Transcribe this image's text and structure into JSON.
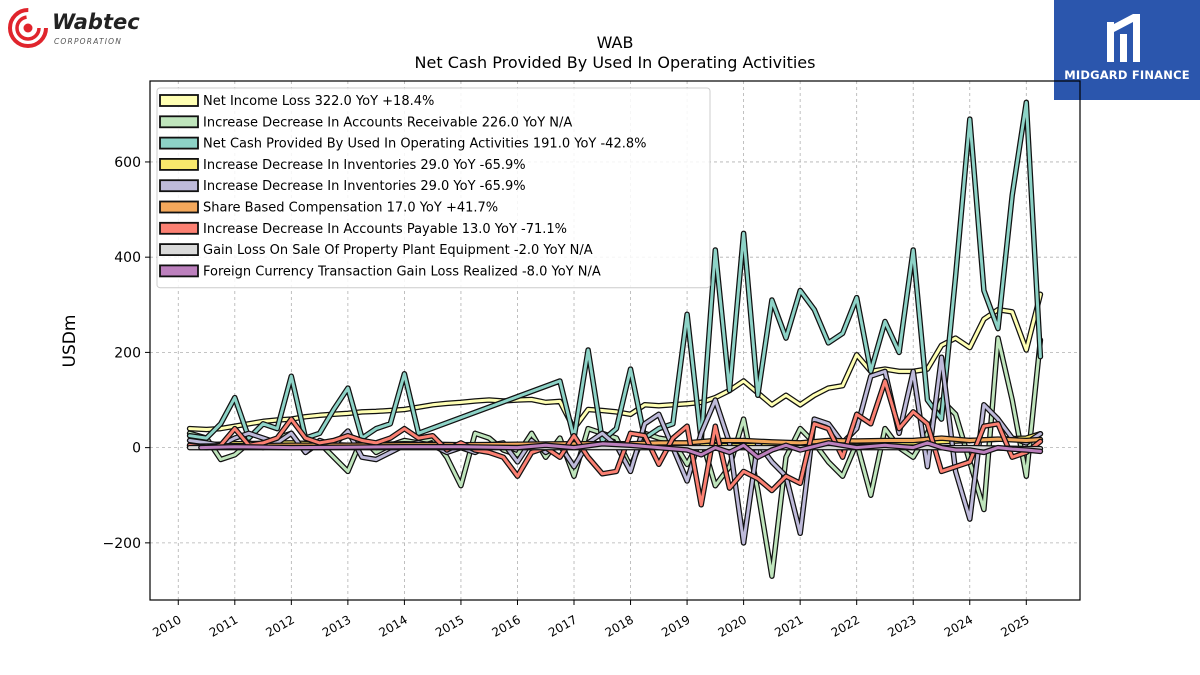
{
  "branding": {
    "company_logo_text": "Wabtec",
    "company_logo_subtext": "CORPORATION",
    "badge_text": "MIDGARD FINANCE"
  },
  "chart_data": {
    "type": "line",
    "title": "WAB",
    "subtitle": "Net Cash Provided By Used In Operating Activities",
    "xlabel": "",
    "ylabel": "USDm",
    "xlim": [
      2009.5,
      2025.95
    ],
    "ylim": [
      -320,
      770
    ],
    "xticks": [
      "2010",
      "2011",
      "2012",
      "2013",
      "2014",
      "2015",
      "2016",
      "2017",
      "2018",
      "2019",
      "2020",
      "2021",
      "2022",
      "2023",
      "2024",
      "2025"
    ],
    "yticks": [
      -200,
      0,
      200,
      400,
      600
    ],
    "ytick_labels": [
      "−200",
      "0",
      "200",
      "400",
      "600"
    ],
    "grid": true,
    "legend_position": "top-left",
    "series": [
      {
        "name": "Net Income Loss",
        "legend": "Net Income Loss  322.0 YoY +18.4%",
        "color": "#ffffb3",
        "x": [
          2010.2,
          2010.5,
          2010.75,
          2011.0,
          2011.25,
          2011.5,
          2011.75,
          2012.0,
          2012.25,
          2012.5,
          2012.75,
          2013.0,
          2013.25,
          2013.5,
          2013.75,
          2014.0,
          2014.25,
          2014.5,
          2014.75,
          2015.0,
          2015.25,
          2015.5,
          2015.75,
          2016.0,
          2016.25,
          2016.5,
          2016.75,
          2017.0,
          2017.25,
          2017.5,
          2017.75,
          2018.0,
          2018.25,
          2018.5,
          2018.75,
          2019.0,
          2019.25,
          2019.5,
          2019.75,
          2020.0,
          2020.25,
          2020.5,
          2020.75,
          2021.0,
          2021.25,
          2021.5,
          2021.75,
          2022.0,
          2022.25,
          2022.5,
          2022.75,
          2023.0,
          2023.25,
          2023.5,
          2023.75,
          2024.0,
          2024.25,
          2024.5,
          2024.75,
          2025.0,
          2025.25
        ],
        "values": [
          40,
          38,
          40,
          45,
          50,
          55,
          58,
          60,
          65,
          68,
          70,
          72,
          75,
          76,
          78,
          80,
          85,
          90,
          93,
          95,
          98,
          100,
          98,
          100,
          101,
          95,
          97,
          40,
          80,
          78,
          75,
          70,
          90,
          88,
          90,
          92,
          95,
          105,
          120,
          140,
          115,
          90,
          110,
          90,
          110,
          125,
          130,
          195,
          160,
          165,
          160,
          160,
          165,
          215,
          230,
          210,
          270,
          290,
          285,
          205,
          322
        ]
      },
      {
        "name": "Increase Decrease In Accounts Receivable",
        "legend": "Increase Decrease In Accounts Receivable  226.0 YoY N/A",
        "color": "#bfe5bc",
        "x": [
          2010.2,
          2010.5,
          2010.75,
          2011.0,
          2011.25,
          2011.5,
          2011.75,
          2012.0,
          2012.25,
          2012.5,
          2012.75,
          2013.0,
          2013.25,
          2013.5,
          2013.75,
          2014.0,
          2014.25,
          2014.5,
          2014.75,
          2015.0,
          2015.25,
          2015.5,
          2015.75,
          2016.0,
          2016.25,
          2016.5,
          2016.75,
          2017.0,
          2017.25,
          2017.5,
          2017.75,
          2018.0,
          2018.25,
          2018.5,
          2018.75,
          2019.0,
          2019.25,
          2019.5,
          2019.75,
          2020.0,
          2020.25,
          2020.5,
          2020.75,
          2021.0,
          2021.25,
          2021.5,
          2021.75,
          2022.0,
          2022.25,
          2022.5,
          2022.75,
          2023.0,
          2023.25,
          2023.5,
          2023.75,
          2024.0,
          2024.25,
          2024.5,
          2024.75,
          2025.0,
          2025.25
        ],
        "values": [
          30,
          20,
          -25,
          -15,
          10,
          0,
          20,
          30,
          -10,
          10,
          -20,
          -50,
          20,
          -10,
          5,
          15,
          10,
          20,
          -20,
          -80,
          30,
          20,
          -5,
          -15,
          30,
          -20,
          20,
          -60,
          40,
          30,
          20,
          -40,
          30,
          20,
          15,
          -35,
          20,
          -80,
          -40,
          60,
          -90,
          -270,
          -20,
          40,
          10,
          -30,
          -60,
          10,
          -100,
          40,
          0,
          -20,
          30,
          100,
          70,
          -30,
          -130,
          230,
          100,
          -60,
          226
        ]
      },
      {
        "name": "Net Cash Provided By Used In Operating Activities",
        "legend": "Net Cash Provided By Used In Operating Activities  191.0 YoY -42.8%",
        "color": "#8dd3c7",
        "x": [
          2010.2,
          2010.5,
          2010.75,
          2011.0,
          2011.25,
          2011.5,
          2011.75,
          2012.0,
          2012.25,
          2012.5,
          2012.75,
          2013.0,
          2013.25,
          2013.5,
          2013.75,
          2014.0,
          2014.25,
          2016.75,
          2017.0,
          2017.25,
          2017.5,
          2017.75,
          2018.0,
          2018.25,
          2018.5,
          2018.75,
          2019.0,
          2019.25,
          2019.5,
          2019.75,
          2020.0,
          2020.25,
          2020.5,
          2020.75,
          2021.0,
          2021.25,
          2021.5,
          2021.75,
          2022.0,
          2022.25,
          2022.5,
          2022.75,
          2023.0,
          2023.25,
          2023.5,
          2023.75,
          2024.0,
          2024.25,
          2024.5,
          2024.75,
          2025.0,
          2025.25
        ],
        "values": [
          25,
          20,
          50,
          105,
          20,
          50,
          40,
          150,
          20,
          30,
          80,
          125,
          20,
          40,
          50,
          155,
          30,
          140,
          20,
          205,
          15,
          40,
          165,
          20,
          40,
          50,
          280,
          15,
          415,
          120,
          450,
          110,
          310,
          230,
          330,
          290,
          220,
          240,
          315,
          160,
          265,
          200,
          415,
          100,
          60,
          360,
          690,
          330,
          250,
          530,
          725,
          191
        ]
      },
      {
        "name": "Increase Decrease In Inventories",
        "legend": "Increase Decrease In Inventories  29.0 YoY -65.9%",
        "color": "#f8e86c",
        "x": [
          2010.2,
          2011.0,
          2012.0,
          2013.0,
          2014.0,
          2015.0,
          2016.0,
          2017.0,
          2018.0,
          2019.0,
          2020.0,
          2021.0,
          2022.0,
          2023.0,
          2024.0,
          2025.0,
          2025.25
        ],
        "values": [
          5,
          8,
          10,
          5,
          8,
          6,
          5,
          4,
          6,
          5,
          4,
          8,
          12,
          10,
          15,
          20,
          29
        ]
      },
      {
        "name": "Increase Decrease In Inventories",
        "legend": "Increase Decrease In Inventories  29.0 YoY -65.9%",
        "color": "#bebada",
        "x": [
          2010.2,
          2010.5,
          2010.75,
          2011.0,
          2011.25,
          2011.5,
          2011.75,
          2012.0,
          2012.25,
          2012.5,
          2012.75,
          2013.0,
          2013.25,
          2013.5,
          2013.75,
          2014.0,
          2014.25,
          2014.5,
          2014.75,
          2015.0,
          2015.25,
          2015.5,
          2015.75,
          2016.0,
          2016.25,
          2016.5,
          2016.75,
          2017.0,
          2017.25,
          2017.5,
          2017.75,
          2018.0,
          2018.25,
          2018.5,
          2018.75,
          2019.0,
          2019.25,
          2019.5,
          2019.75,
          2020.0,
          2020.25,
          2020.5,
          2020.75,
          2021.0,
          2021.25,
          2021.5,
          2021.75,
          2022.0,
          2022.25,
          2022.5,
          2022.75,
          2023.0,
          2023.25,
          2023.5,
          2023.75,
          2024.0,
          2024.25,
          2024.5,
          2024.75,
          2025.0,
          2025.25
        ],
        "values": [
          15,
          10,
          5,
          20,
          30,
          20,
          10,
          30,
          -10,
          15,
          5,
          35,
          -20,
          -25,
          -10,
          5,
          10,
          5,
          -10,
          0,
          -10,
          5,
          10,
          -30,
          15,
          -10,
          5,
          -40,
          10,
          30,
          5,
          -50,
          50,
          70,
          0,
          -70,
          30,
          100,
          10,
          -200,
          10,
          -30,
          -60,
          -180,
          60,
          50,
          10,
          40,
          150,
          160,
          30,
          160,
          -40,
          190,
          -50,
          -150,
          90,
          60,
          20,
          10,
          29
        ]
      },
      {
        "name": "Share Based Compensation",
        "legend": "Share Based Compensation  17.0 YoY +41.7%",
        "color": "#f4a85b",
        "x": [
          2010.2,
          2011.0,
          2012.0,
          2013.0,
          2014.0,
          2015.0,
          2016.0,
          2017.0,
          2018.0,
          2018.5,
          2019.0,
          2019.5,
          2020.0,
          2020.5,
          2021.0,
          2021.5,
          2022.0,
          2022.5,
          2023.0,
          2023.5,
          2024.0,
          2024.5,
          2025.0,
          2025.25
        ],
        "values": [
          3,
          4,
          5,
          5,
          6,
          6,
          7,
          8,
          8,
          10,
          10,
          15,
          15,
          12,
          10,
          15,
          14,
          15,
          15,
          20,
          15,
          18,
          15,
          17
        ]
      },
      {
        "name": "Increase Decrease In Accounts Payable",
        "legend": "Increase Decrease In Accounts Payable  13.0 YoY -71.1%",
        "color": "#fb8072",
        "x": [
          2010.2,
          2010.5,
          2010.75,
          2011.0,
          2011.25,
          2011.5,
          2011.75,
          2012.0,
          2012.25,
          2012.5,
          2012.75,
          2013.0,
          2013.25,
          2013.5,
          2013.75,
          2014.0,
          2014.25,
          2014.5,
          2014.75,
          2015.0,
          2015.25,
          2015.5,
          2015.75,
          2016.0,
          2016.25,
          2016.5,
          2016.75,
          2017.0,
          2017.25,
          2017.5,
          2017.75,
          2018.0,
          2018.25,
          2018.5,
          2018.75,
          2019.0,
          2019.25,
          2019.5,
          2019.75,
          2020.0,
          2020.25,
          2020.5,
          2020.75,
          2021.0,
          2021.25,
          2021.5,
          2021.75,
          2022.0,
          2022.25,
          2022.5,
          2022.75,
          2023.0,
          2023.25,
          2023.5,
          2023.75,
          2024.0,
          2024.25,
          2024.5,
          2024.75,
          2025.0,
          2025.25
        ],
        "values": [
          5,
          0,
          5,
          40,
          5,
          10,
          20,
          60,
          20,
          10,
          15,
          25,
          15,
          10,
          20,
          40,
          20,
          25,
          -5,
          10,
          -5,
          -10,
          -20,
          -60,
          -10,
          0,
          -20,
          25,
          -20,
          -55,
          -50,
          30,
          25,
          -35,
          20,
          45,
          -120,
          45,
          -85,
          -50,
          -65,
          -90,
          -60,
          -75,
          50,
          40,
          -20,
          70,
          50,
          140,
          40,
          75,
          50,
          -50,
          -40,
          -30,
          45,
          50,
          -20,
          -10,
          13
        ]
      },
      {
        "name": "Gain Loss On Sale Of Property Plant Equipment",
        "legend": "Gain Loss On Sale Of Property Plant Equipment  -2.0 YoY N/A",
        "color": "#d9d9d9",
        "x": [
          2010.2,
          2011.0,
          2012.0,
          2013.0,
          2014.0,
          2015.0,
          2016.0,
          2017.0,
          2018.0,
          2019.0,
          2020.0,
          2021.0,
          2022.0,
          2023.0,
          2024.0,
          2025.0,
          2025.25
        ],
        "values": [
          0,
          0,
          0,
          0,
          0,
          0,
          0,
          0,
          0,
          0,
          0,
          0,
          0,
          0,
          0,
          -2,
          -2
        ]
      },
      {
        "name": "Foreign Currency Transaction Gain Loss Realized",
        "legend": "Foreign Currency Transaction Gain Loss Realized  -8.0 YoY N/A",
        "color": "#bc80bd",
        "x": [
          2010.4,
          2011.0,
          2012.0,
          2013.0,
          2014.0,
          2015.0,
          2016.0,
          2016.5,
          2017.0,
          2017.5,
          2018.0,
          2018.5,
          2019.0,
          2019.25,
          2019.5,
          2019.75,
          2020.0,
          2020.25,
          2020.5,
          2020.75,
          2021.0,
          2021.5,
          2022.0,
          2022.5,
          2023.0,
          2023.25,
          2023.5,
          2023.75,
          2024.0,
          2024.25,
          2024.5,
          2024.75,
          2025.0,
          2025.25
        ],
        "values": [
          0,
          2,
          0,
          1,
          2,
          2,
          0,
          5,
          0,
          8,
          5,
          0,
          -5,
          -15,
          0,
          -10,
          5,
          -20,
          -5,
          5,
          -5,
          10,
          0,
          5,
          0,
          10,
          0,
          -5,
          -5,
          -10,
          0,
          -3,
          -5,
          -8
        ]
      }
    ]
  }
}
